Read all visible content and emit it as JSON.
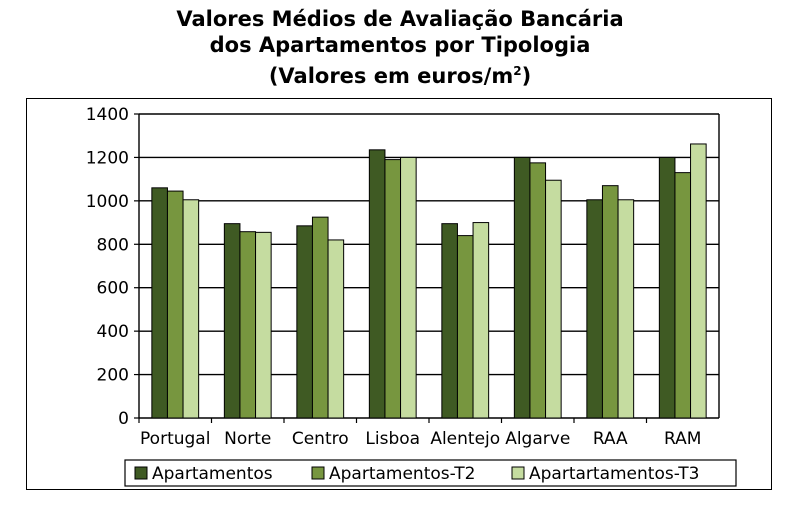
{
  "chart_data": {
    "type": "bar",
    "title_lines": [
      "Valores Médios de Avaliação Bancária",
      "dos Apartamentos por Tipologia",
      "(Valores em euros/m",
      "2",
      ")"
    ],
    "categories": [
      "Portugal",
      "Norte",
      "Centro",
      "Lisboa",
      "Alentejo",
      "Algarve",
      "RAA",
      "RAM"
    ],
    "series": [
      {
        "name": "Apartamentos",
        "color": "#3f5a23",
        "values": [
          1060,
          895,
          885,
          1235,
          895,
          1200,
          1005,
          1200
        ]
      },
      {
        "name": "Apartamentos-T2",
        "color": "#77963f",
        "values": [
          1045,
          858,
          925,
          1190,
          840,
          1175,
          1070,
          1130
        ]
      },
      {
        "name": "Apartartamentos-T3",
        "color": "#c5dca0",
        "values": [
          1005,
          855,
          820,
          1200,
          900,
          1095,
          1005,
          1262
        ]
      }
    ],
    "ylim": [
      0,
      1400
    ],
    "yticks": [
      0,
      200,
      400,
      600,
      800,
      1000,
      1200,
      1400
    ],
    "grid": true,
    "legend_position": "bottom"
  }
}
